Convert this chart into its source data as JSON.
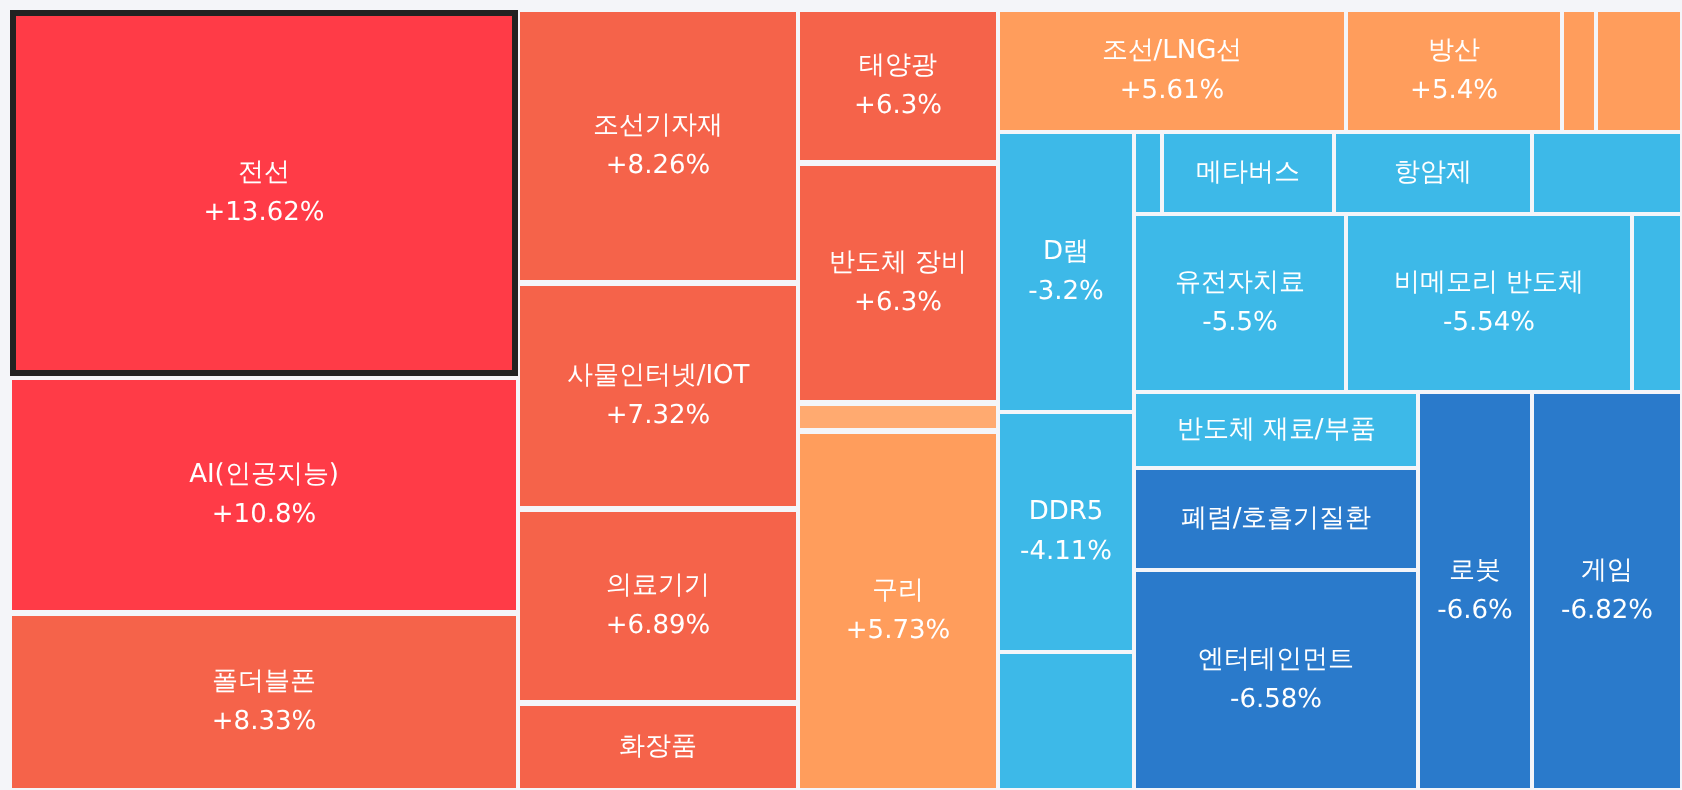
{
  "chart_data": {
    "type": "other",
    "categories": [
      "전선",
      "AI(인공지능)",
      "폴더블폰",
      "조선기자재",
      "사물인터넷/IOT",
      "의료기기",
      "화장품",
      "태양광",
      "반도체 장비",
      null,
      "구리",
      "조선/LNG선",
      "방산",
      null,
      null,
      "D램",
      "DDR5",
      null,
      null,
      "메타버스",
      "항암제",
      null,
      "유전자치료",
      "비메모리 반도체",
      null,
      "반도체 재료/부품",
      "폐렴/호흡기질환",
      "엔터테인먼트",
      "로봇",
      "게임"
    ],
    "values": [
      13.62,
      10.8,
      8.33,
      8.26,
      7.32,
      6.89,
      null,
      6.3,
      6.3,
      null,
      5.73,
      5.61,
      5.4,
      null,
      null,
      -3.2,
      -4.11,
      null,
      null,
      null,
      null,
      null,
      -5.5,
      -5.54,
      null,
      null,
      null,
      -6.58,
      -6.6,
      -6.82
    ],
    "value_labels": [
      "+13.62%",
      "+10.8%",
      "+8.33%",
      "+8.26%",
      "+7.32%",
      "+6.89%",
      null,
      "+6.3%",
      "+6.3%",
      null,
      "+5.73%",
      "+5.61%",
      "+5.4%",
      null,
      null,
      "-3.2%",
      "-4.11%",
      null,
      null,
      null,
      null,
      null,
      "-5.5%",
      "-5.54%",
      null,
      null,
      null,
      "-6.58%",
      "-6.6%",
      "-6.82%"
    ],
    "colors": [
      "#ff3b47",
      "#ff3b47",
      "#f5634a",
      "#f5634a",
      "#f5634a",
      "#f5634a",
      "#f5634a",
      "#f5634a",
      "#f5634a",
      "#ffaa70",
      "#ff9d5c",
      "#ff9d5c",
      "#ff9d5c",
      "#ff9d5c",
      "#ff9d5c",
      "#3db9e8",
      "#3db9e8",
      "#3db9e8",
      "#3db9e8",
      "#3db9e8",
      "#3db9e8",
      "#3db9e8",
      "#3db9e8",
      "#3db9e8",
      "#3db9e8",
      "#3db9e8",
      "#2a7acb",
      "#2a7acb",
      "#2a7acb",
      "#2a7acb"
    ]
  }
}
